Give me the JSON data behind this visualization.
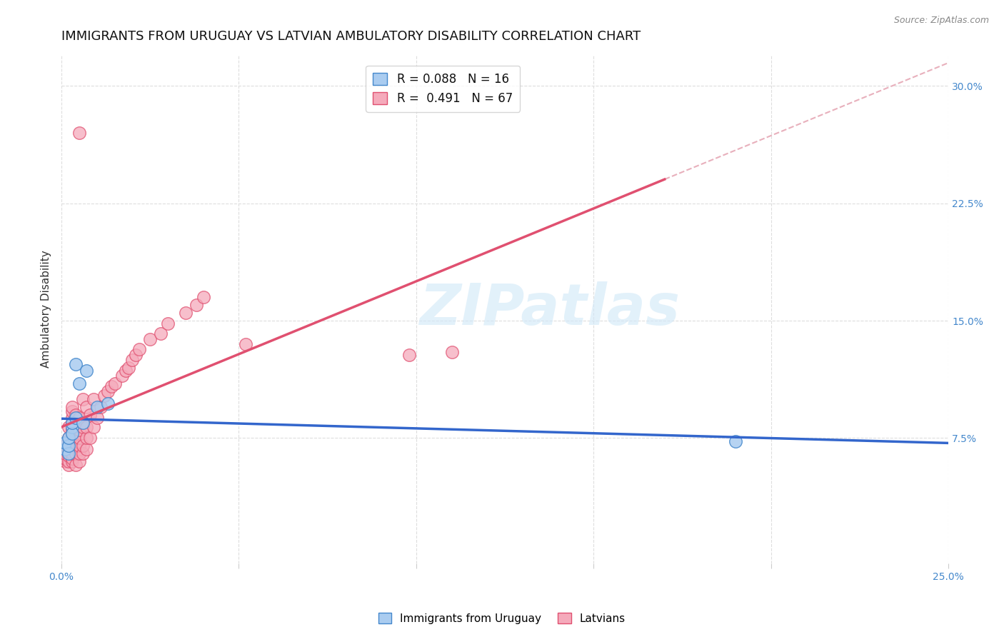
{
  "title": "IMMIGRANTS FROM URUGUAY VS LATVIAN AMBULATORY DISABILITY CORRELATION CHART",
  "source": "Source: ZipAtlas.com",
  "ylabel": "Ambulatory Disability",
  "xlim": [
    0.0,
    0.25
  ],
  "ylim": [
    -0.005,
    0.32
  ],
  "xticks": [
    0.0,
    0.05,
    0.1,
    0.15,
    0.2,
    0.25
  ],
  "yticks": [
    0.075,
    0.15,
    0.225,
    0.3
  ],
  "ytick_labels": [
    "7.5%",
    "15.0%",
    "22.5%",
    "30.0%"
  ],
  "watermark": "ZIPatlas",
  "scatter_uruguay": {
    "x": [
      0.001,
      0.001,
      0.002,
      0.002,
      0.002,
      0.003,
      0.003,
      0.003,
      0.004,
      0.004,
      0.005,
      0.006,
      0.007,
      0.01,
      0.013,
      0.19
    ],
    "y": [
      0.068,
      0.072,
      0.065,
      0.07,
      0.075,
      0.082,
      0.078,
      0.085,
      0.088,
      0.122,
      0.11,
      0.085,
      0.118,
      0.095,
      0.097,
      0.073
    ],
    "color": "#aaccf0",
    "edgecolor": "#4488cc",
    "size": 160,
    "alpha": 0.85
  },
  "scatter_latvian": {
    "x": [
      0.001,
      0.001,
      0.001,
      0.001,
      0.002,
      0.002,
      0.002,
      0.002,
      0.002,
      0.002,
      0.002,
      0.003,
      0.003,
      0.003,
      0.003,
      0.003,
      0.003,
      0.003,
      0.003,
      0.003,
      0.003,
      0.004,
      0.004,
      0.004,
      0.004,
      0.004,
      0.004,
      0.005,
      0.005,
      0.005,
      0.005,
      0.005,
      0.005,
      0.006,
      0.006,
      0.006,
      0.006,
      0.007,
      0.007,
      0.007,
      0.007,
      0.008,
      0.008,
      0.009,
      0.009,
      0.01,
      0.011,
      0.012,
      0.013,
      0.014,
      0.015,
      0.017,
      0.018,
      0.019,
      0.02,
      0.021,
      0.022,
      0.025,
      0.028,
      0.03,
      0.035,
      0.038,
      0.04,
      0.052,
      0.098,
      0.11,
      0.005
    ],
    "y": [
      0.06,
      0.062,
      0.065,
      0.07,
      0.058,
      0.06,
      0.064,
      0.068,
      0.07,
      0.075,
      0.082,
      0.06,
      0.062,
      0.065,
      0.07,
      0.075,
      0.08,
      0.085,
      0.088,
      0.092,
      0.095,
      0.058,
      0.065,
      0.07,
      0.075,
      0.082,
      0.09,
      0.06,
      0.065,
      0.07,
      0.075,
      0.08,
      0.088,
      0.065,
      0.07,
      0.082,
      0.1,
      0.068,
      0.075,
      0.082,
      0.095,
      0.075,
      0.09,
      0.082,
      0.1,
      0.088,
      0.095,
      0.102,
      0.105,
      0.108,
      0.11,
      0.115,
      0.118,
      0.12,
      0.125,
      0.128,
      0.132,
      0.138,
      0.142,
      0.148,
      0.155,
      0.16,
      0.165,
      0.135,
      0.128,
      0.13,
      0.27
    ],
    "color": "#f5aabb",
    "edgecolor": "#e05070",
    "size": 160,
    "alpha": 0.75
  },
  "trendline_uruguay": {
    "color": "#3366cc",
    "linewidth": 2.5
  },
  "trendline_latvian_solid": {
    "color": "#e05070",
    "linewidth": 2.5
  },
  "trendline_latvian_dashed": {
    "color": "#e8b0bc",
    "linewidth": 1.5,
    "linestyle": "--"
  },
  "background_color": "#ffffff",
  "grid_color": "#dddddd",
  "title_fontsize": 13,
  "axis_label_fontsize": 11,
  "tick_fontsize": 10,
  "tick_color": "#4488cc",
  "legend_fontsize": 12,
  "legend_r_color": "#4488cc",
  "legend_n_color": "#4488cc"
}
